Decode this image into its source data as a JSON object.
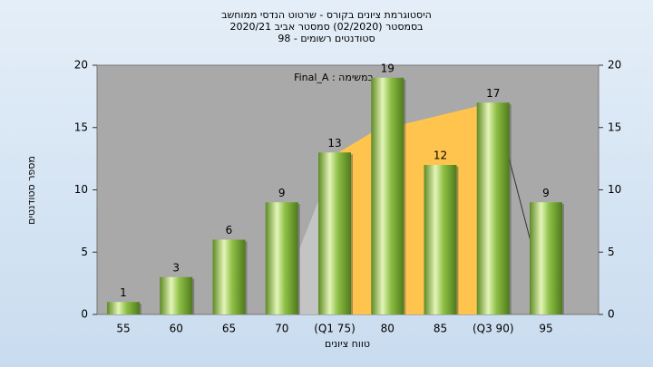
{
  "chart_data": {
    "type": "bar",
    "title": [
      "היסטוגרמת ציונים בקורס - שרטוט הנדסי ממוחשב",
      "בסמסטר  (02/2020)  סמסטר אביב 2020/21",
      "סטודנטים רשומים - 98"
    ],
    "annotation": "Final_A : במשימה",
    "x_label": "טווח ציונים",
    "y_label": "מספר סטודנטים",
    "categories": [
      "55",
      "60",
      "65",
      "70",
      "(Q1 75)",
      "80",
      "85",
      "(Q3 90)",
      "95"
    ],
    "values": [
      1,
      3,
      6,
      9,
      13,
      19,
      12,
      17,
      9
    ],
    "color": "#8dbf45",
    "ylim": [
      0,
      20
    ],
    "yticks": [
      0,
      5,
      10,
      15,
      20
    ],
    "y2lim": [
      0,
      20
    ],
    "y2ticks": [
      0,
      5,
      10,
      15,
      20
    ]
  }
}
